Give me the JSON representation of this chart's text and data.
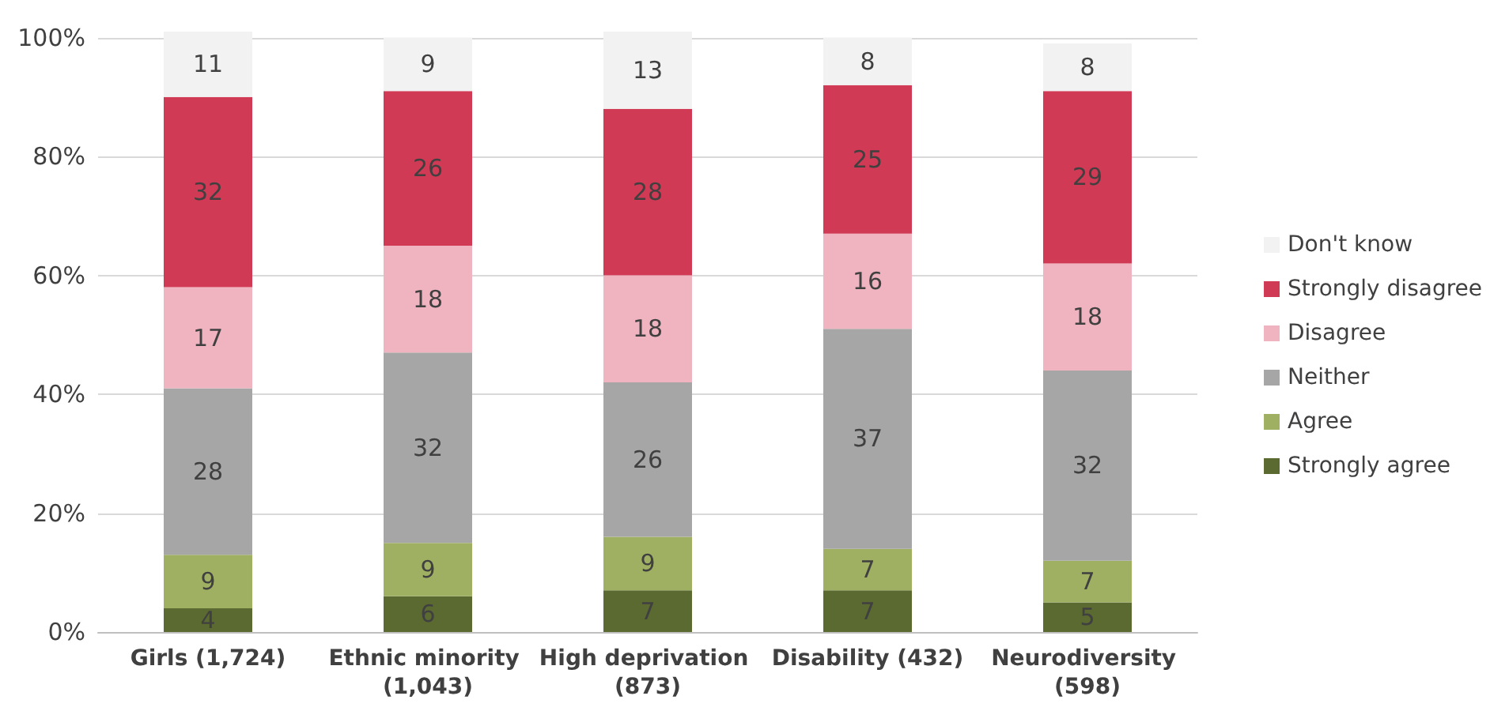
{
  "chart_data": {
    "type": "bar",
    "stacked": true,
    "data_labels": true,
    "grid": "y",
    "legend": "right",
    "categories": [
      "Girls (1,724)",
      "Ethnic minority (1,043)",
      "High deprivation (873)",
      "Disability (432)",
      "Neurodiversity (598)"
    ],
    "ylim": [
      0,
      101
    ],
    "yticks": [
      {
        "value": 0,
        "label": "0%"
      },
      {
        "value": 20,
        "label": "20%"
      },
      {
        "value": 40,
        "label": "40%"
      },
      {
        "value": 60,
        "label": "60%"
      },
      {
        "value": 80,
        "label": "80%"
      },
      {
        "value": 100,
        "label": "100%"
      }
    ],
    "series": [
      {
        "name": "Strongly agree",
        "color": "#5b6a30",
        "values": [
          4,
          6,
          7,
          7,
          5
        ]
      },
      {
        "name": "Agree",
        "color": "#9fb062",
        "values": [
          9,
          9,
          9,
          7,
          7
        ]
      },
      {
        "name": "Neither",
        "color": "#a6a6a6",
        "values": [
          28,
          32,
          26,
          37,
          32
        ]
      },
      {
        "name": "Disagree",
        "color": "#efb4bf",
        "values": [
          17,
          18,
          18,
          16,
          18
        ]
      },
      {
        "name": "Strongly disagree",
        "color": "#d03a55",
        "values": [
          32,
          26,
          28,
          25,
          29
        ]
      },
      {
        "name": "Don't know",
        "color": "#f2f2f2",
        "values": [
          11,
          9,
          13,
          8,
          8
        ]
      }
    ]
  }
}
